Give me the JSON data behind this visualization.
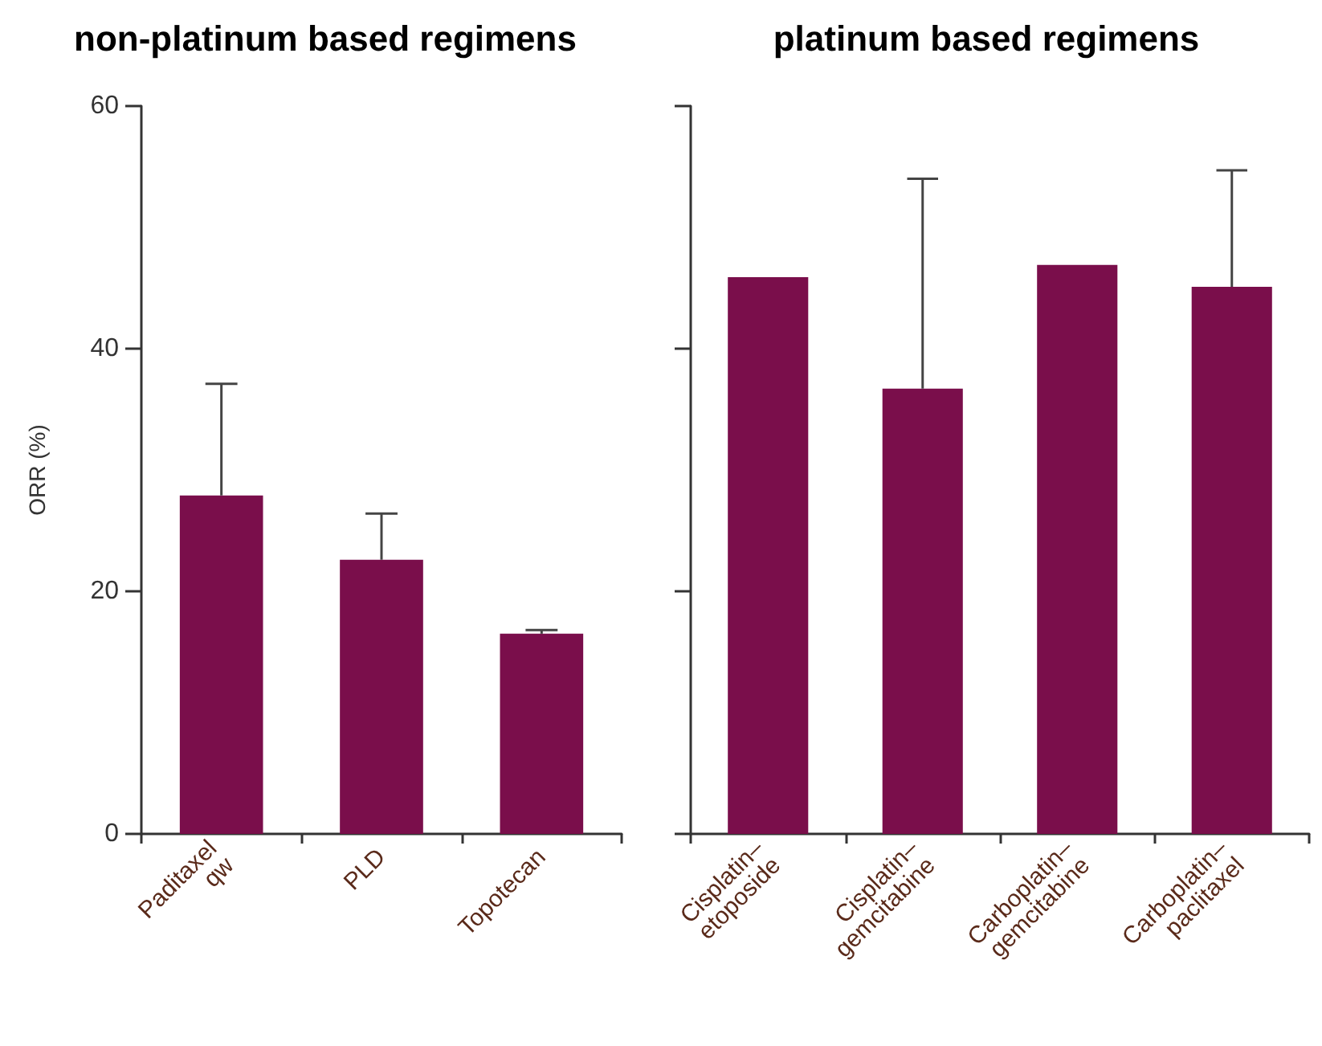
{
  "chart_data": [
    {
      "type": "bar",
      "title": "non-platinum based regimens",
      "ylabel": "ORR (%)",
      "categories": [
        "Paditaxel\nqw",
        "PLD",
        "Topotecan"
      ],
      "values": [
        27.9,
        22.6,
        16.5
      ],
      "color": "#7a0e4b",
      "errors": [
        [
          27.9,
          37.1
        ],
        [
          22.6,
          26.4
        ],
        [
          16.5,
          16.8
        ]
      ],
      "ylim": [
        0,
        60
      ],
      "yticks": [
        0,
        20,
        40,
        60
      ]
    },
    {
      "type": "bar",
      "title": "platinum based regimens",
      "categories": [
        "Cisplatin–\netoposide",
        "Cisplatin–\ngemcitabine",
        "Carboplatin–\ngemcitabine",
        "Carboplatin–\npaclitaxel"
      ],
      "values": [
        45.9,
        36.7,
        46.9,
        45.1
      ],
      "color": "#7a0e4b",
      "errors": [
        null,
        [
          36.7,
          54.0
        ],
        null,
        [
          45.1,
          54.7
        ]
      ],
      "ylim": [
        0,
        60
      ],
      "yticks": [
        0,
        20,
        40,
        60
      ],
      "tick_labels": "x"
    }
  ]
}
